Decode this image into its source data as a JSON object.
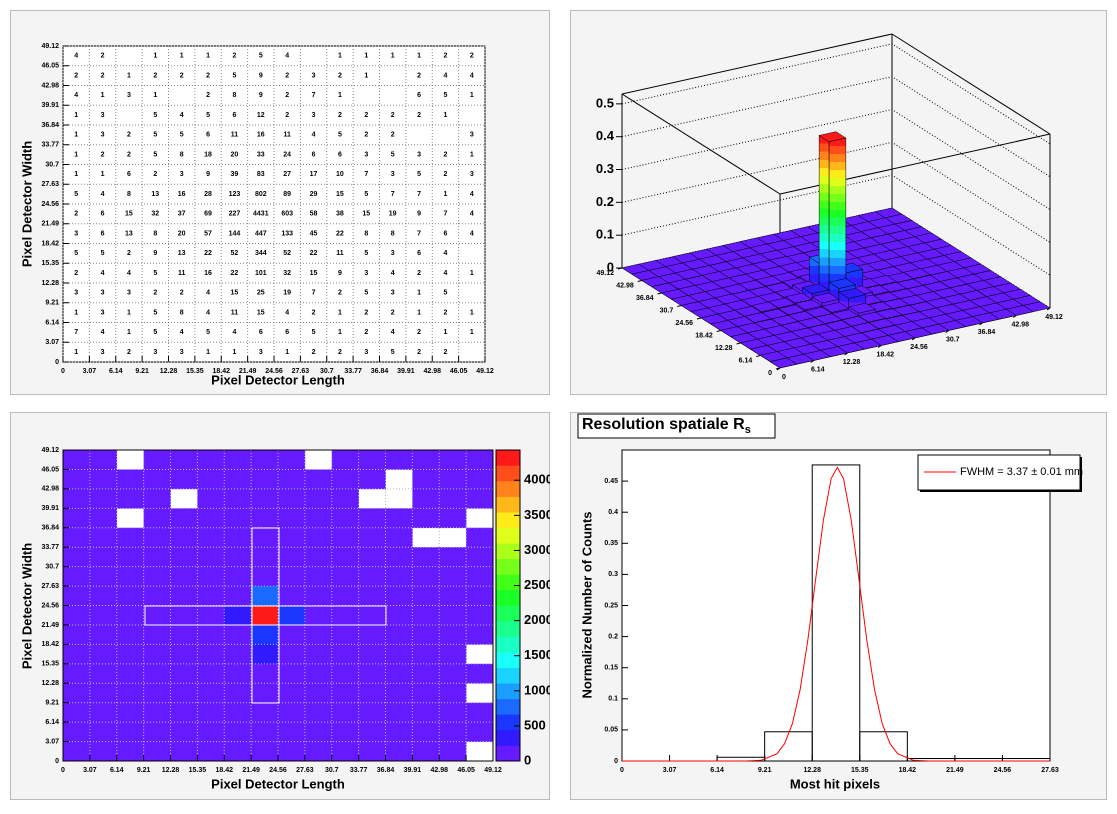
{
  "chart_data": [
    {
      "type": "text_heatmap",
      "xlabel": "Pixel Detector Length",
      "ylabel": "Pixel Detector Width",
      "xlim": [
        0,
        49.12
      ],
      "ylim": [
        0,
        49.12
      ],
      "xticks": [
        0,
        3.07,
        6.14,
        9.21,
        12.28,
        15.35,
        18.42,
        21.49,
        24.56,
        27.63,
        30.7,
        33.77,
        36.84,
        39.91,
        42.98,
        46.05,
        49.12
      ],
      "yticks": [
        0,
        3.07,
        6.14,
        9.21,
        12.28,
        15.35,
        18.42,
        21.49,
        24.56,
        27.63,
        30.7,
        33.77,
        36.84,
        39.91,
        42.98,
        46.05,
        49.12
      ],
      "grid": true,
      "z": [
        [
          4,
          2,
          null,
          1,
          1,
          1,
          2,
          5,
          4,
          null,
          1,
          1,
          1,
          1,
          2,
          2
        ],
        [
          2,
          2,
          1,
          2,
          2,
          2,
          5,
          9,
          2,
          3,
          2,
          1,
          null,
          2,
          4,
          4
        ],
        [
          4,
          1,
          3,
          1,
          null,
          2,
          8,
          9,
          2,
          7,
          1,
          null,
          null,
          6,
          5,
          1
        ],
        [
          1,
          3,
          null,
          5,
          4,
          5,
          6,
          12,
          2,
          3,
          2,
          2,
          2,
          2,
          1,
          null
        ],
        [
          1,
          3,
          2,
          5,
          5,
          6,
          11,
          16,
          11,
          4,
          5,
          2,
          2,
          null,
          null,
          3
        ],
        [
          1,
          2,
          2,
          5,
          8,
          18,
          20,
          33,
          24,
          6,
          6,
          3,
          5,
          3,
          2,
          1
        ],
        [
          1,
          1,
          6,
          2,
          3,
          9,
          39,
          83,
          27,
          17,
          10,
          7,
          3,
          5,
          2,
          3
        ],
        [
          5,
          4,
          8,
          13,
          16,
          28,
          123,
          802,
          89,
          29,
          15,
          5,
          7,
          7,
          1,
          4
        ],
        [
          2,
          6,
          15,
          32,
          37,
          69,
          227,
          4431,
          603,
          58,
          38,
          15,
          19,
          9,
          7,
          4
        ],
        [
          3,
          6,
          13,
          8,
          20,
          57,
          144,
          447,
          133,
          45,
          22,
          8,
          8,
          7,
          6,
          4
        ],
        [
          5,
          5,
          2,
          9,
          13,
          22,
          52,
          344,
          52,
          22,
          11,
          5,
          3,
          6,
          4,
          null
        ],
        [
          2,
          4,
          4,
          5,
          11,
          16,
          22,
          101,
          32,
          15,
          9,
          3,
          4,
          2,
          4,
          1
        ],
        [
          3,
          3,
          3,
          2,
          2,
          4,
          15,
          25,
          19,
          7,
          2,
          5,
          3,
          1,
          5,
          null
        ],
        [
          1,
          3,
          1,
          5,
          8,
          4,
          11,
          15,
          4,
          2,
          1,
          2,
          2,
          1,
          2,
          1
        ],
        [
          7,
          4,
          1,
          5,
          4,
          5,
          4,
          6,
          6,
          5,
          1,
          2,
          4,
          2,
          1,
          1
        ],
        [
          1,
          3,
          2,
          3,
          3,
          1,
          1,
          3,
          1,
          2,
          2,
          3,
          5,
          2,
          2,
          null
        ]
      ]
    },
    {
      "type": "lego",
      "xlim": [
        0,
        49.12
      ],
      "ylim": [
        0,
        49.12
      ],
      "zlim": [
        0,
        0.53
      ],
      "xticks": [
        0,
        6.14,
        12.28,
        18.42,
        24.56,
        30.7,
        36.84,
        42.98,
        49.12
      ],
      "yticks": [
        0,
        6.14,
        12.28,
        18.42,
        24.56,
        30.7,
        36.84,
        42.98,
        49.12
      ],
      "zticks": [
        0,
        0.1,
        0.2,
        0.3,
        0.4,
        0.5
      ],
      "grid": true
    },
    {
      "type": "heatmap",
      "xlabel": "Pixel Detector Length",
      "ylabel": "Pixel Detector Width",
      "xlim": [
        0,
        49.12
      ],
      "ylim": [
        0,
        49.12
      ],
      "xticks": [
        0,
        3.07,
        6.14,
        9.21,
        12.28,
        15.35,
        18.42,
        21.49,
        24.56,
        27.63,
        30.7,
        33.77,
        36.84,
        39.91,
        42.98,
        46.05,
        49.12
      ],
      "yticks": [
        0,
        3.07,
        6.14,
        9.21,
        12.28,
        15.35,
        18.42,
        21.49,
        24.56,
        27.63,
        30.7,
        33.77,
        36.84,
        39.91,
        42.98,
        46.05,
        49.12
      ],
      "zlim": [
        0,
        4431
      ],
      "zticks": [
        0,
        500,
        1000,
        1500,
        2000,
        2500,
        3000,
        3500,
        4000
      ],
      "grid": true
    },
    {
      "type": "histogram",
      "title": "Resolution spatiale R",
      "title_subscript": "s",
      "xlabel": "Most hit pixels",
      "ylabel": "Normalized Number of Counts",
      "xlim": [
        0,
        27.63
      ],
      "ylim": [
        0,
        0.5
      ],
      "xticks": [
        0,
        3.07,
        6.14,
        9.21,
        12.28,
        15.35,
        18.42,
        21.49,
        24.56,
        27.63
      ],
      "yticks": [
        0,
        0.05,
        0.1,
        0.15,
        0.2,
        0.25,
        0.3,
        0.35,
        0.4,
        0.45
      ],
      "bins": [
        0,
        3.07,
        6.14,
        9.21,
        12.28,
        15.35,
        18.42,
        21.49,
        24.56,
        27.63
      ],
      "counts": [
        0,
        0,
        0.006,
        0.047,
        0.476,
        0.047,
        0.004,
        0.004,
        0.004
      ],
      "fit": {
        "name": "FWHM = 3.37 ± 0.01 mm",
        "color": "#ff0000",
        "x": [
          0,
          6,
          8,
          9,
          10,
          10.5,
          11,
          11.5,
          12,
          12.5,
          13,
          13.5,
          13.9,
          14.3,
          14.8,
          15.3,
          15.8,
          16.3,
          16.8,
          17.3,
          17.8,
          18.8,
          19.8,
          21.8,
          27.63
        ],
        "y": [
          0,
          0,
          0.0001,
          0.0013,
          0.0115,
          0.028,
          0.06,
          0.115,
          0.195,
          0.292,
          0.387,
          0.454,
          0.472,
          0.454,
          0.387,
          0.292,
          0.195,
          0.115,
          0.06,
          0.028,
          0.0115,
          0.0013,
          0.0001,
          0,
          0
        ]
      }
    }
  ]
}
